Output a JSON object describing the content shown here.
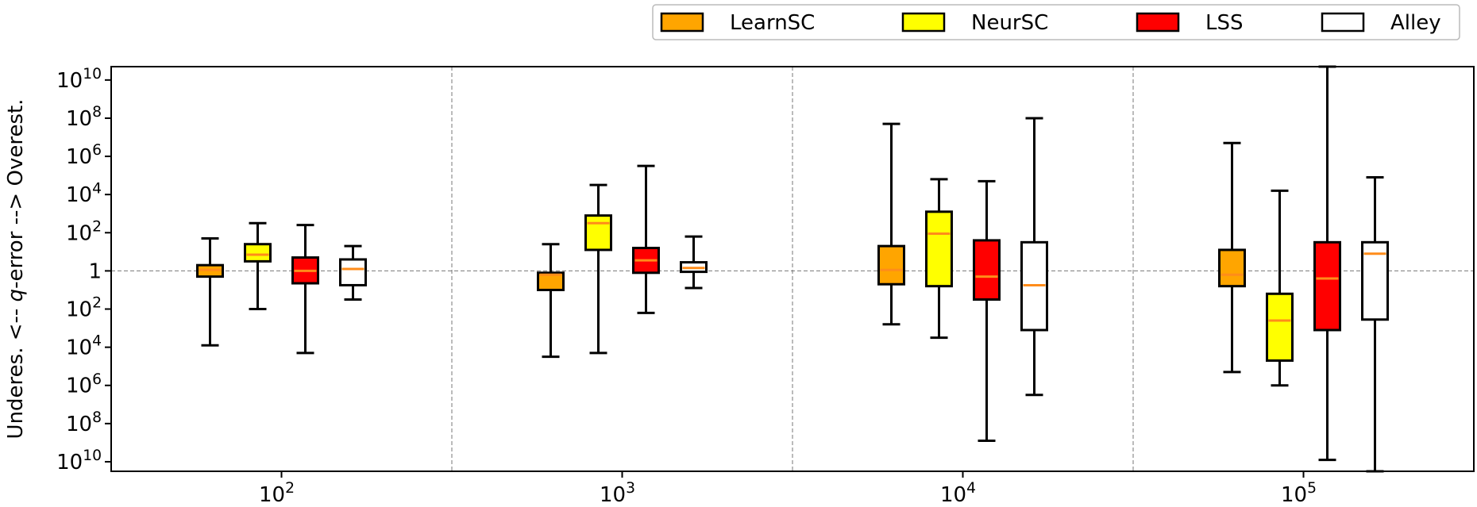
{
  "chart_data": {
    "type": "boxplot",
    "log_scale": true,
    "ylabel_parts": [
      "Underes. <-- ",
      "q",
      "-error --> Overest."
    ],
    "y_ticks": [
      {
        "exp": 10,
        "label": "10",
        "sup": "10"
      },
      {
        "exp": 8,
        "label": "10",
        "sup": "8"
      },
      {
        "exp": 6,
        "label": "10",
        "sup": "6"
      },
      {
        "exp": 4,
        "label": "10",
        "sup": "4"
      },
      {
        "exp": 2,
        "label": "10",
        "sup": "2"
      },
      {
        "exp": 0,
        "label": "1",
        "sup": ""
      },
      {
        "exp": -2,
        "label": "10",
        "sup": "2"
      },
      {
        "exp": -4,
        "label": "10",
        "sup": "4"
      },
      {
        "exp": -6,
        "label": "10",
        "sup": "6"
      },
      {
        "exp": -8,
        "label": "10",
        "sup": "8"
      },
      {
        "exp": -10,
        "label": "10",
        "sup": "10"
      }
    ],
    "ylim": [
      -10.5,
      10.7
    ],
    "groups": [
      {
        "label": "10",
        "sup": "2"
      },
      {
        "label": "10",
        "sup": "3"
      },
      {
        "label": "10",
        "sup": "4"
      },
      {
        "label": "10",
        "sup": "5"
      }
    ],
    "legend_position": "top-right, outside",
    "grid": "dashed separators between groups and at q-error 1",
    "series": [
      {
        "name": "LearnSC",
        "color": "#ffa500",
        "boxes": [
          {
            "whisker_low": -3.9,
            "q1": -0.3,
            "median": 0.05,
            "q3": 0.3,
            "whisker_high": 1.7
          },
          {
            "whisker_low": -4.5,
            "q1": -1.0,
            "median": -0.2,
            "q3": -0.1,
            "whisker_high": 1.4
          },
          {
            "whisker_low": -2.8,
            "q1": -0.7,
            "median": 0.05,
            "q3": 1.3,
            "whisker_high": 7.7
          },
          {
            "whisker_low": -5.3,
            "q1": -0.8,
            "median": -0.2,
            "q3": 1.1,
            "whisker_high": 6.7
          }
        ]
      },
      {
        "name": "NeurSC",
        "color": "#ffff00",
        "boxes": [
          {
            "whisker_low": -2.0,
            "q1": 0.5,
            "median": 0.85,
            "q3": 1.4,
            "whisker_high": 2.5
          },
          {
            "whisker_low": -4.3,
            "q1": 1.1,
            "median": 2.5,
            "q3": 2.9,
            "whisker_high": 4.5
          },
          {
            "whisker_low": -3.5,
            "q1": -0.8,
            "median": 1.95,
            "q3": 3.1,
            "whisker_high": 4.8
          },
          {
            "whisker_low": -6.0,
            "q1": -4.7,
            "median": -2.6,
            "q3": -1.2,
            "whisker_high": 4.2
          }
        ]
      },
      {
        "name": "LSS",
        "color": "#ff0000",
        "boxes": [
          {
            "whisker_low": -4.3,
            "q1": -0.65,
            "median": 0.0,
            "q3": 0.7,
            "whisker_high": 2.4
          },
          {
            "whisker_low": -2.2,
            "q1": -0.1,
            "median": 0.55,
            "q3": 1.2,
            "whisker_high": 5.5
          },
          {
            "whisker_low": -8.9,
            "q1": -1.5,
            "median": -0.3,
            "q3": 1.6,
            "whisker_high": 4.7
          },
          {
            "whisker_low": -9.9,
            "q1": -3.1,
            "median": -0.4,
            "q3": 1.5,
            "whisker_high": 10.7
          }
        ]
      },
      {
        "name": "Alley",
        "color": "#ffffff",
        "boxes": [
          {
            "whisker_low": -1.5,
            "q1": -0.75,
            "median": 0.1,
            "q3": 0.6,
            "whisker_high": 1.3
          },
          {
            "whisker_low": -0.9,
            "q1": -0.05,
            "median": 0.15,
            "q3": 0.45,
            "whisker_high": 1.8
          },
          {
            "whisker_low": -6.5,
            "q1": -3.1,
            "median": -0.75,
            "q3": 1.5,
            "whisker_high": 8.0
          },
          {
            "whisker_low": -10.5,
            "q1": -2.55,
            "median": 0.9,
            "q3": 1.5,
            "whisker_high": 4.9
          }
        ]
      }
    ]
  }
}
